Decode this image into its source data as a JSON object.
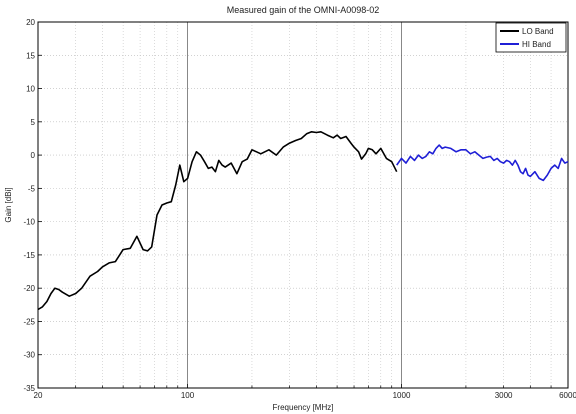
{
  "chart_data": {
    "type": "line",
    "title": "Measured gain of the OMNI-A0098-02",
    "xlabel": "Frequency [MHz]",
    "ylabel": "Gain [dBi]",
    "x_scale": "log",
    "xlim": [
      20,
      6000
    ],
    "ylim": [
      -35,
      20
    ],
    "x_ticks": [
      20,
      100,
      1000,
      3000,
      6000
    ],
    "x_tick_labels": [
      "20",
      "100",
      "1000",
      "3000",
      "6000"
    ],
    "y_ticks": [
      -35,
      -30,
      -25,
      -20,
      -15,
      -10,
      -5,
      0,
      5,
      10,
      15,
      20
    ],
    "y_tick_labels": [
      "-35",
      "-30",
      "-25",
      "-20",
      "-15",
      "-10",
      "-5",
      "0",
      "5",
      "10",
      "15",
      "20"
    ],
    "grid": true,
    "legend_position": "top-right",
    "series": [
      {
        "name": "LO Band",
        "color": "#000000",
        "x": [
          20,
          21,
          22,
          23,
          24,
          25,
          26,
          28,
          30,
          32,
          35,
          38,
          40,
          43,
          46,
          50,
          54,
          58,
          62,
          65,
          68,
          72,
          76,
          80,
          84,
          88,
          92,
          96,
          100,
          105,
          110,
          115,
          120,
          125,
          130,
          135,
          140,
          145,
          150,
          160,
          170,
          180,
          190,
          200,
          210,
          220,
          240,
          260,
          280,
          300,
          320,
          340,
          360,
          380,
          400,
          420,
          450,
          480,
          500,
          520,
          550,
          580,
          600,
          630,
          650,
          680,
          700,
          730,
          760,
          800,
          850,
          900,
          950
        ],
        "y": [
          -23.2,
          -22.8,
          -22.0,
          -20.8,
          -20.0,
          -20.2,
          -20.6,
          -21.2,
          -20.8,
          -20.0,
          -18.2,
          -17.5,
          -16.8,
          -16.2,
          -16.0,
          -14.2,
          -14.0,
          -12.2,
          -14.2,
          -14.4,
          -13.8,
          -9.0,
          -7.5,
          -7.2,
          -7.0,
          -4.5,
          -1.5,
          -4.0,
          -3.5,
          -1.0,
          0.5,
          0.0,
          -1.0,
          -2.0,
          -1.8,
          -2.5,
          -0.8,
          -1.5,
          -1.8,
          -1.2,
          -2.8,
          -1.0,
          -0.6,
          0.8,
          0.5,
          0.2,
          0.8,
          0.0,
          1.2,
          1.8,
          2.2,
          2.5,
          3.2,
          3.5,
          3.4,
          3.5,
          3.0,
          2.6,
          3.0,
          2.5,
          2.8,
          1.8,
          1.2,
          0.5,
          -0.6,
          0.2,
          1.0,
          0.8,
          0.2,
          1.0,
          -0.5,
          -1.0,
          -2.5
        ]
      },
      {
        "name": "HI Band",
        "color": "#1f1fd6",
        "x": [
          950,
          1000,
          1050,
          1100,
          1150,
          1200,
          1250,
          1300,
          1350,
          1400,
          1450,
          1500,
          1550,
          1600,
          1700,
          1800,
          1900,
          2000,
          2100,
          2200,
          2300,
          2400,
          2500,
          2600,
          2700,
          2800,
          2900,
          3000,
          3100,
          3200,
          3300,
          3400,
          3500,
          3600,
          3700,
          3800,
          3900,
          4000,
          4200,
          4400,
          4600,
          4800,
          5000,
          5200,
          5400,
          5600,
          5800,
          6000
        ],
        "y": [
          -1.5,
          -0.5,
          -1.2,
          -0.2,
          -0.8,
          0.0,
          -0.5,
          -0.2,
          0.5,
          0.2,
          1.0,
          1.5,
          1.0,
          1.2,
          1.0,
          0.5,
          0.8,
          0.8,
          0.2,
          0.5,
          0.0,
          -0.5,
          -0.3,
          -0.2,
          -0.8,
          -0.5,
          -1.0,
          -1.2,
          -0.8,
          -1.0,
          -1.5,
          -0.8,
          -1.5,
          -2.5,
          -2.8,
          -2.0,
          -3.0,
          -3.2,
          -2.5,
          -3.5,
          -3.8,
          -3.0,
          -2.0,
          -1.5,
          -2.0,
          -0.5,
          -1.2,
          -1.0
        ]
      }
    ]
  }
}
